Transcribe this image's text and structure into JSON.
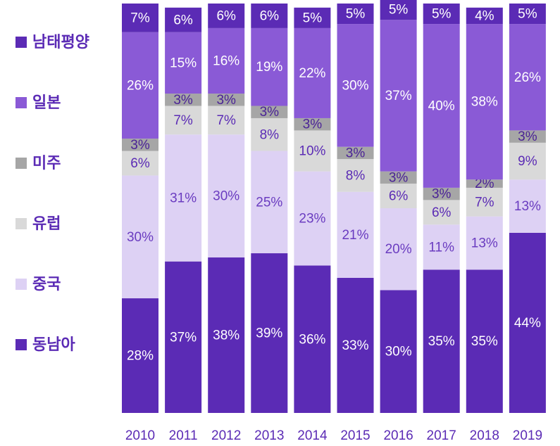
{
  "chart_data": {
    "type": "stacked_bar",
    "categories": [
      "2010",
      "2011",
      "2012",
      "2013",
      "2014",
      "2015",
      "2016",
      "2017",
      "2018",
      "2019"
    ],
    "ylim": [
      0,
      100
    ],
    "series": [
      {
        "name": "동남아",
        "color": "#5b2bb5",
        "label_color": "#ffffff",
        "values": [
          28,
          37,
          38,
          39,
          36,
          33,
          30,
          35,
          35,
          44
        ],
        "value_labels": [
          "28%",
          "37%",
          "38%",
          "39%",
          "36%",
          "33%",
          "30%",
          "35%",
          "35%",
          "44%"
        ]
      },
      {
        "name": "중국",
        "color": "#ddd1f4",
        "label_color": "#6a3cc0",
        "values": [
          30,
          31,
          30,
          25,
          23,
          21,
          20,
          11,
          13,
          13
        ],
        "value_labels": [
          "30%",
          "31%",
          "30%",
          "25%",
          "23%",
          "21%",
          "20%",
          "11%",
          "13%",
          "13%"
        ]
      },
      {
        "name": "유럽",
        "color": "#d9d9d9",
        "label_color": "#5b2bb5",
        "values": [
          6,
          7,
          7,
          8,
          10,
          8,
          6,
          6,
          7,
          9
        ],
        "value_labels": [
          "6%",
          "7%",
          "7%",
          "8%",
          "10%",
          "8%",
          "6%",
          "6%",
          "7%",
          "9%"
        ]
      },
      {
        "name": "미주",
        "color": "#a6a6a6",
        "label_color": "#4a2296",
        "values": [
          3,
          3,
          3,
          3,
          3,
          3,
          3,
          3,
          2,
          3
        ],
        "value_labels": [
          "3%",
          "3%",
          "3%",
          "3%",
          "3%",
          "3%",
          "3%",
          "3%",
          "2%",
          "3%"
        ]
      },
      {
        "name": "일본",
        "color": "#8a5ad6",
        "label_color": "#ffffff",
        "values": [
          26,
          15,
          16,
          19,
          22,
          30,
          37,
          40,
          38,
          26
        ],
        "value_labels": [
          "26%",
          "15%",
          "16%",
          "19%",
          "22%",
          "30%",
          "37%",
          "40%",
          "38%",
          "26%"
        ]
      },
      {
        "name": "남태평양",
        "color": "#5b2bb5",
        "label_color": "#ffffff",
        "values": [
          7,
          6,
          6,
          6,
          5,
          5,
          5,
          5,
          4,
          5
        ],
        "value_labels": [
          "7%",
          "6%",
          "6%",
          "6%",
          "5%",
          "5%",
          "5%",
          "5%",
          "4%",
          "5%"
        ]
      }
    ]
  }
}
